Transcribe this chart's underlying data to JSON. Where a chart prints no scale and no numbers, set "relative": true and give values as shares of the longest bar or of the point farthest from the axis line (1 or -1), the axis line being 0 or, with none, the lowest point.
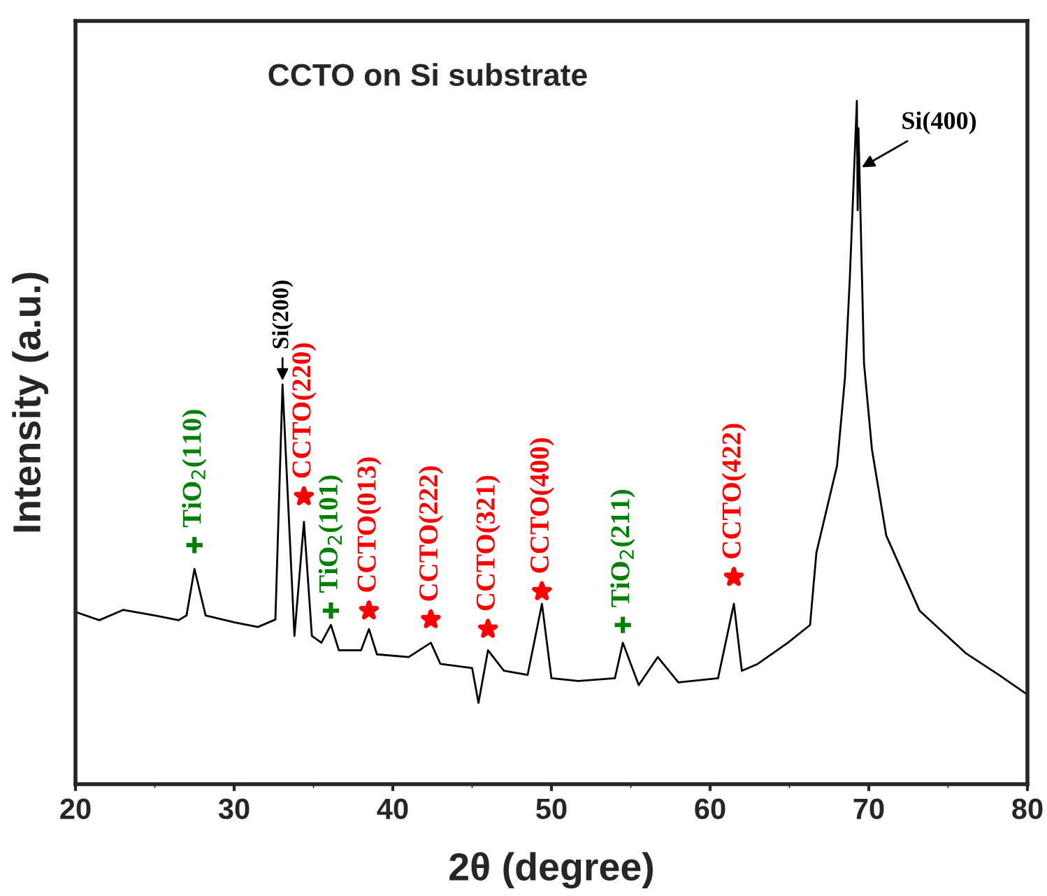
{
  "chart_data": {
    "type": "line",
    "relative": true,
    "title": "CCTO on Si substrate",
    "xlabel": "2θ (degree)",
    "ylabel": "Intensity (a.u.)",
    "xlim": [
      20,
      80
    ],
    "xticks": [
      20,
      30,
      40,
      50,
      60,
      70,
      80
    ],
    "tick_labels": "x",
    "grid": false,
    "legend": false,
    "series": [
      {
        "color": "#000000",
        "x": [
          20,
          21.5,
          23,
          25,
          26.5,
          27,
          27.5,
          28.2,
          30,
          31.5,
          32.6,
          33.05,
          33.8,
          34.4,
          34.9,
          35.5,
          36.1,
          36.6,
          38,
          38.5,
          39,
          41,
          42.4,
          43,
          45,
          45.4,
          46,
          47,
          48.5,
          49.4,
          50,
          51.7,
          54,
          54.5,
          55.5,
          56.7,
          58,
          60.5,
          61.5,
          62,
          63,
          64.9,
          66.3,
          66.7,
          68,
          68.5,
          68.8,
          69.25,
          69.3,
          69.35,
          69.7,
          70.2,
          71.1,
          73.2,
          76.1,
          78.2,
          80
        ],
        "values": [
          0.252,
          0.24,
          0.255,
          0.247,
          0.24,
          0.247,
          0.315,
          0.247,
          0.237,
          0.23,
          0.241,
          0.585,
          0.217,
          0.384,
          0.217,
          0.207,
          0.233,
          0.196,
          0.196,
          0.227,
          0.19,
          0.186,
          0.207,
          0.176,
          0.17,
          0.119,
          0.196,
          0.166,
          0.16,
          0.264,
          0.155,
          0.151,
          0.155,
          0.207,
          0.145,
          0.186,
          0.149,
          0.155,
          0.264,
          0.166,
          0.176,
          0.207,
          0.233,
          0.339,
          0.466,
          0.595,
          0.738,
          1.0,
          0.84,
          0.96,
          0.616,
          0.49,
          0.364,
          0.254,
          0.192,
          0.16,
          0.131
        ]
      },
      {
        "type": "scatter",
        "marker": "cross",
        "color": "#008000",
        "x": [
          27.5,
          36.1,
          54.5
        ],
        "values": [
          0.35,
          0.254,
          0.233
        ]
      },
      {
        "type": "scatter",
        "marker": "star",
        "color": "#ff0000",
        "x": [
          34.4,
          38.5,
          42.4,
          46,
          49.4,
          61.5
        ],
        "values": [
          0.421,
          0.254,
          0.241,
          0.227,
          0.282,
          0.303
        ]
      }
    ],
    "annotations": [
      {
        "text": "TiO$_{2}$(110)",
        "x": 27.5,
        "y": 0.35
      },
      {
        "text": "Si(200)",
        "x": 33.05,
        "y": 0.585
      },
      {
        "text": "CCTO(220)",
        "x": 34.4,
        "y": 0.421
      },
      {
        "text": "TiO$_{2}$(101)",
        "x": 36.1,
        "y": 0.254
      },
      {
        "text": "CCTO(013)",
        "x": 38.5,
        "y": 0.254
      },
      {
        "text": "CCTO(222)",
        "x": 42.4,
        "y": 0.241
      },
      {
        "text": "CCTO(321)",
        "x": 46,
        "y": 0.227
      },
      {
        "text": "CCTO(400)",
        "x": 49.4,
        "y": 0.282
      },
      {
        "text": "TiO$_{2}$(211)",
        "x": 54.5,
        "y": 0.233
      },
      {
        "text": "CCTO(422)",
        "x": 61.5,
        "y": 0.303
      },
      {
        "text": "Si(400)",
        "x": 69.35,
        "y": 0.9
      }
    ]
  }
}
